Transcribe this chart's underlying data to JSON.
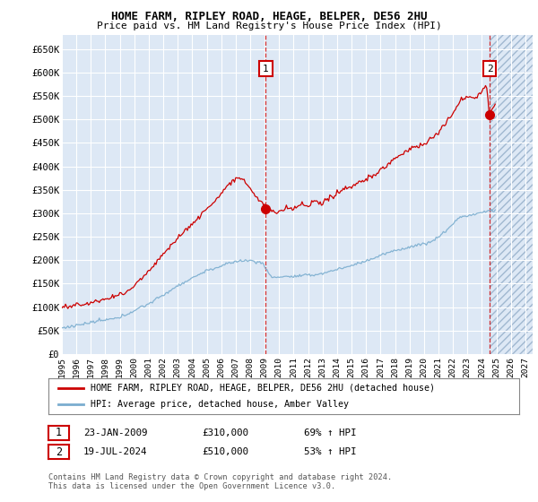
{
  "title1": "HOME FARM, RIPLEY ROAD, HEAGE, BELPER, DE56 2HU",
  "title2": "Price paid vs. HM Land Registry's House Price Index (HPI)",
  "ylabel_ticks": [
    "£0",
    "£50K",
    "£100K",
    "£150K",
    "£200K",
    "£250K",
    "£300K",
    "£350K",
    "£400K",
    "£450K",
    "£500K",
    "£550K",
    "£600K",
    "£650K"
  ],
  "ylabel_values": [
    0,
    50000,
    100000,
    150000,
    200000,
    250000,
    300000,
    350000,
    400000,
    450000,
    500000,
    550000,
    600000,
    650000
  ],
  "ylim": [
    0,
    680000
  ],
  "xlim_start": 1995.0,
  "xlim_end": 2027.5,
  "background_color": "#dde8f5",
  "grid_color": "#ffffff",
  "legend_line1": "HOME FARM, RIPLEY ROAD, HEAGE, BELPER, DE56 2HU (detached house)",
  "legend_line2": "HPI: Average price, detached house, Amber Valley",
  "sale1_label": "1",
  "sale1_date": "23-JAN-2009",
  "sale1_price": "£310,000",
  "sale1_hpi": "69% ↑ HPI",
  "sale1_year": 2009.07,
  "sale1_value": 310000,
  "sale2_label": "2",
  "sale2_date": "19-JUL-2024",
  "sale2_price": "£510,000",
  "sale2_hpi": "53% ↑ HPI",
  "sale2_year": 2024.54,
  "sale2_value": 510000,
  "red_color": "#cc0000",
  "blue_color": "#7aadcf",
  "footnote": "Contains HM Land Registry data © Crown copyright and database right 2024.\nThis data is licensed under the Open Government Licence v3.0."
}
